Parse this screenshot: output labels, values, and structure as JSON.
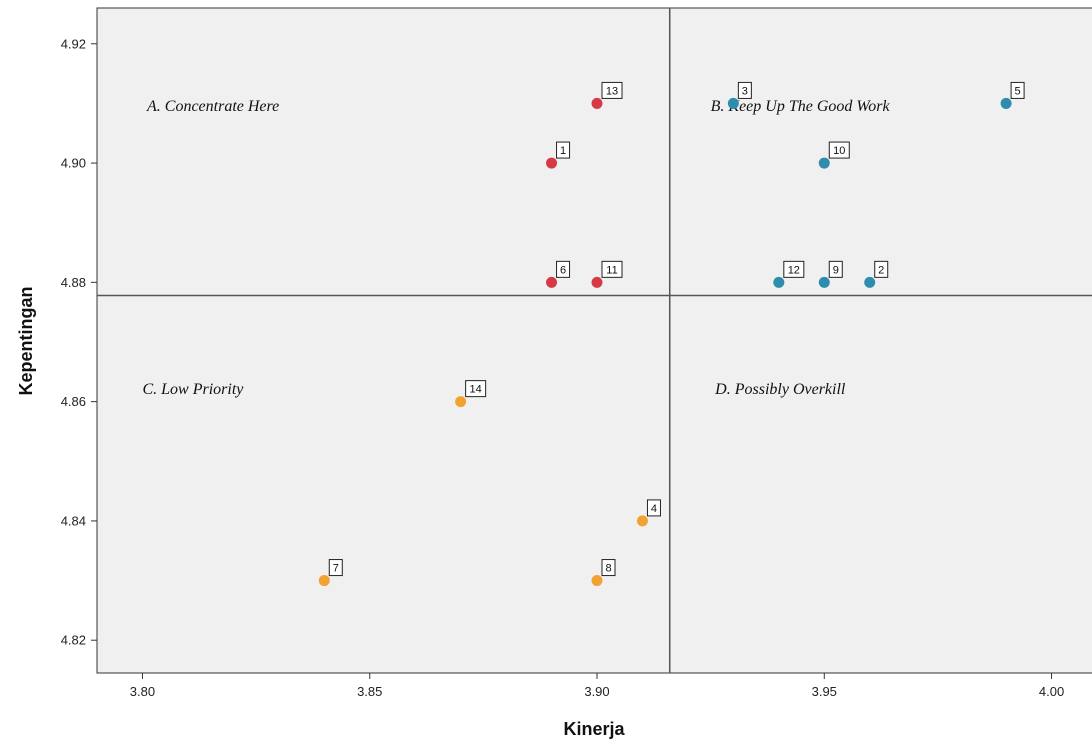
{
  "chart_data": {
    "type": "scatter",
    "title": "",
    "xlabel": "Kinerja",
    "ylabel": "Kepentingan",
    "xlim": [
      3.79,
      4.01
    ],
    "ylim": [
      4.8145,
      4.926
    ],
    "x_ticks": [
      "3.80",
      "3.85",
      "3.90",
      "3.95",
      "4.00"
    ],
    "y_ticks": [
      "4.82",
      "4.84",
      "4.86",
      "4.88",
      "4.90",
      "4.92"
    ],
    "grid": false,
    "reference_lines": {
      "x": 3.916,
      "y": 4.8778
    },
    "quadrants": [
      {
        "label": "A. Concentrate Here",
        "x": 3.801,
        "y": 4.9087
      },
      {
        "label": "B. Keep Up The Good Work",
        "x": 3.925,
        "y": 4.9087
      },
      {
        "label": "C. Low Priority",
        "x": 3.8,
        "y": 4.8613
      },
      {
        "label": "D. Possibly Overkill",
        "x": 3.926,
        "y": 4.8613
      }
    ],
    "colors": {
      "A": "#d63a45",
      "B": "#2e8cad",
      "C": "#f2a233"
    },
    "points": [
      {
        "id": "1",
        "x": 3.89,
        "y": 4.9,
        "group": "A"
      },
      {
        "id": "2",
        "x": 3.96,
        "y": 4.88,
        "group": "B"
      },
      {
        "id": "3",
        "x": 3.93,
        "y": 4.91,
        "group": "B"
      },
      {
        "id": "4",
        "x": 3.91,
        "y": 4.84,
        "group": "C"
      },
      {
        "id": "5",
        "x": 3.99,
        "y": 4.91,
        "group": "B"
      },
      {
        "id": "6",
        "x": 3.89,
        "y": 4.88,
        "group": "A"
      },
      {
        "id": "7",
        "x": 3.84,
        "y": 4.83,
        "group": "C"
      },
      {
        "id": "8",
        "x": 3.9,
        "y": 4.83,
        "group": "C"
      },
      {
        "id": "9",
        "x": 3.95,
        "y": 4.88,
        "group": "B"
      },
      {
        "id": "10",
        "x": 3.95,
        "y": 4.9,
        "group": "B"
      },
      {
        "id": "11",
        "x": 3.9,
        "y": 4.88,
        "group": "A"
      },
      {
        "id": "12",
        "x": 3.94,
        "y": 4.88,
        "group": "B"
      },
      {
        "id": "13",
        "x": 3.9,
        "y": 4.91,
        "group": "A"
      },
      {
        "id": "14",
        "x": 3.87,
        "y": 4.86,
        "group": "C"
      }
    ]
  }
}
